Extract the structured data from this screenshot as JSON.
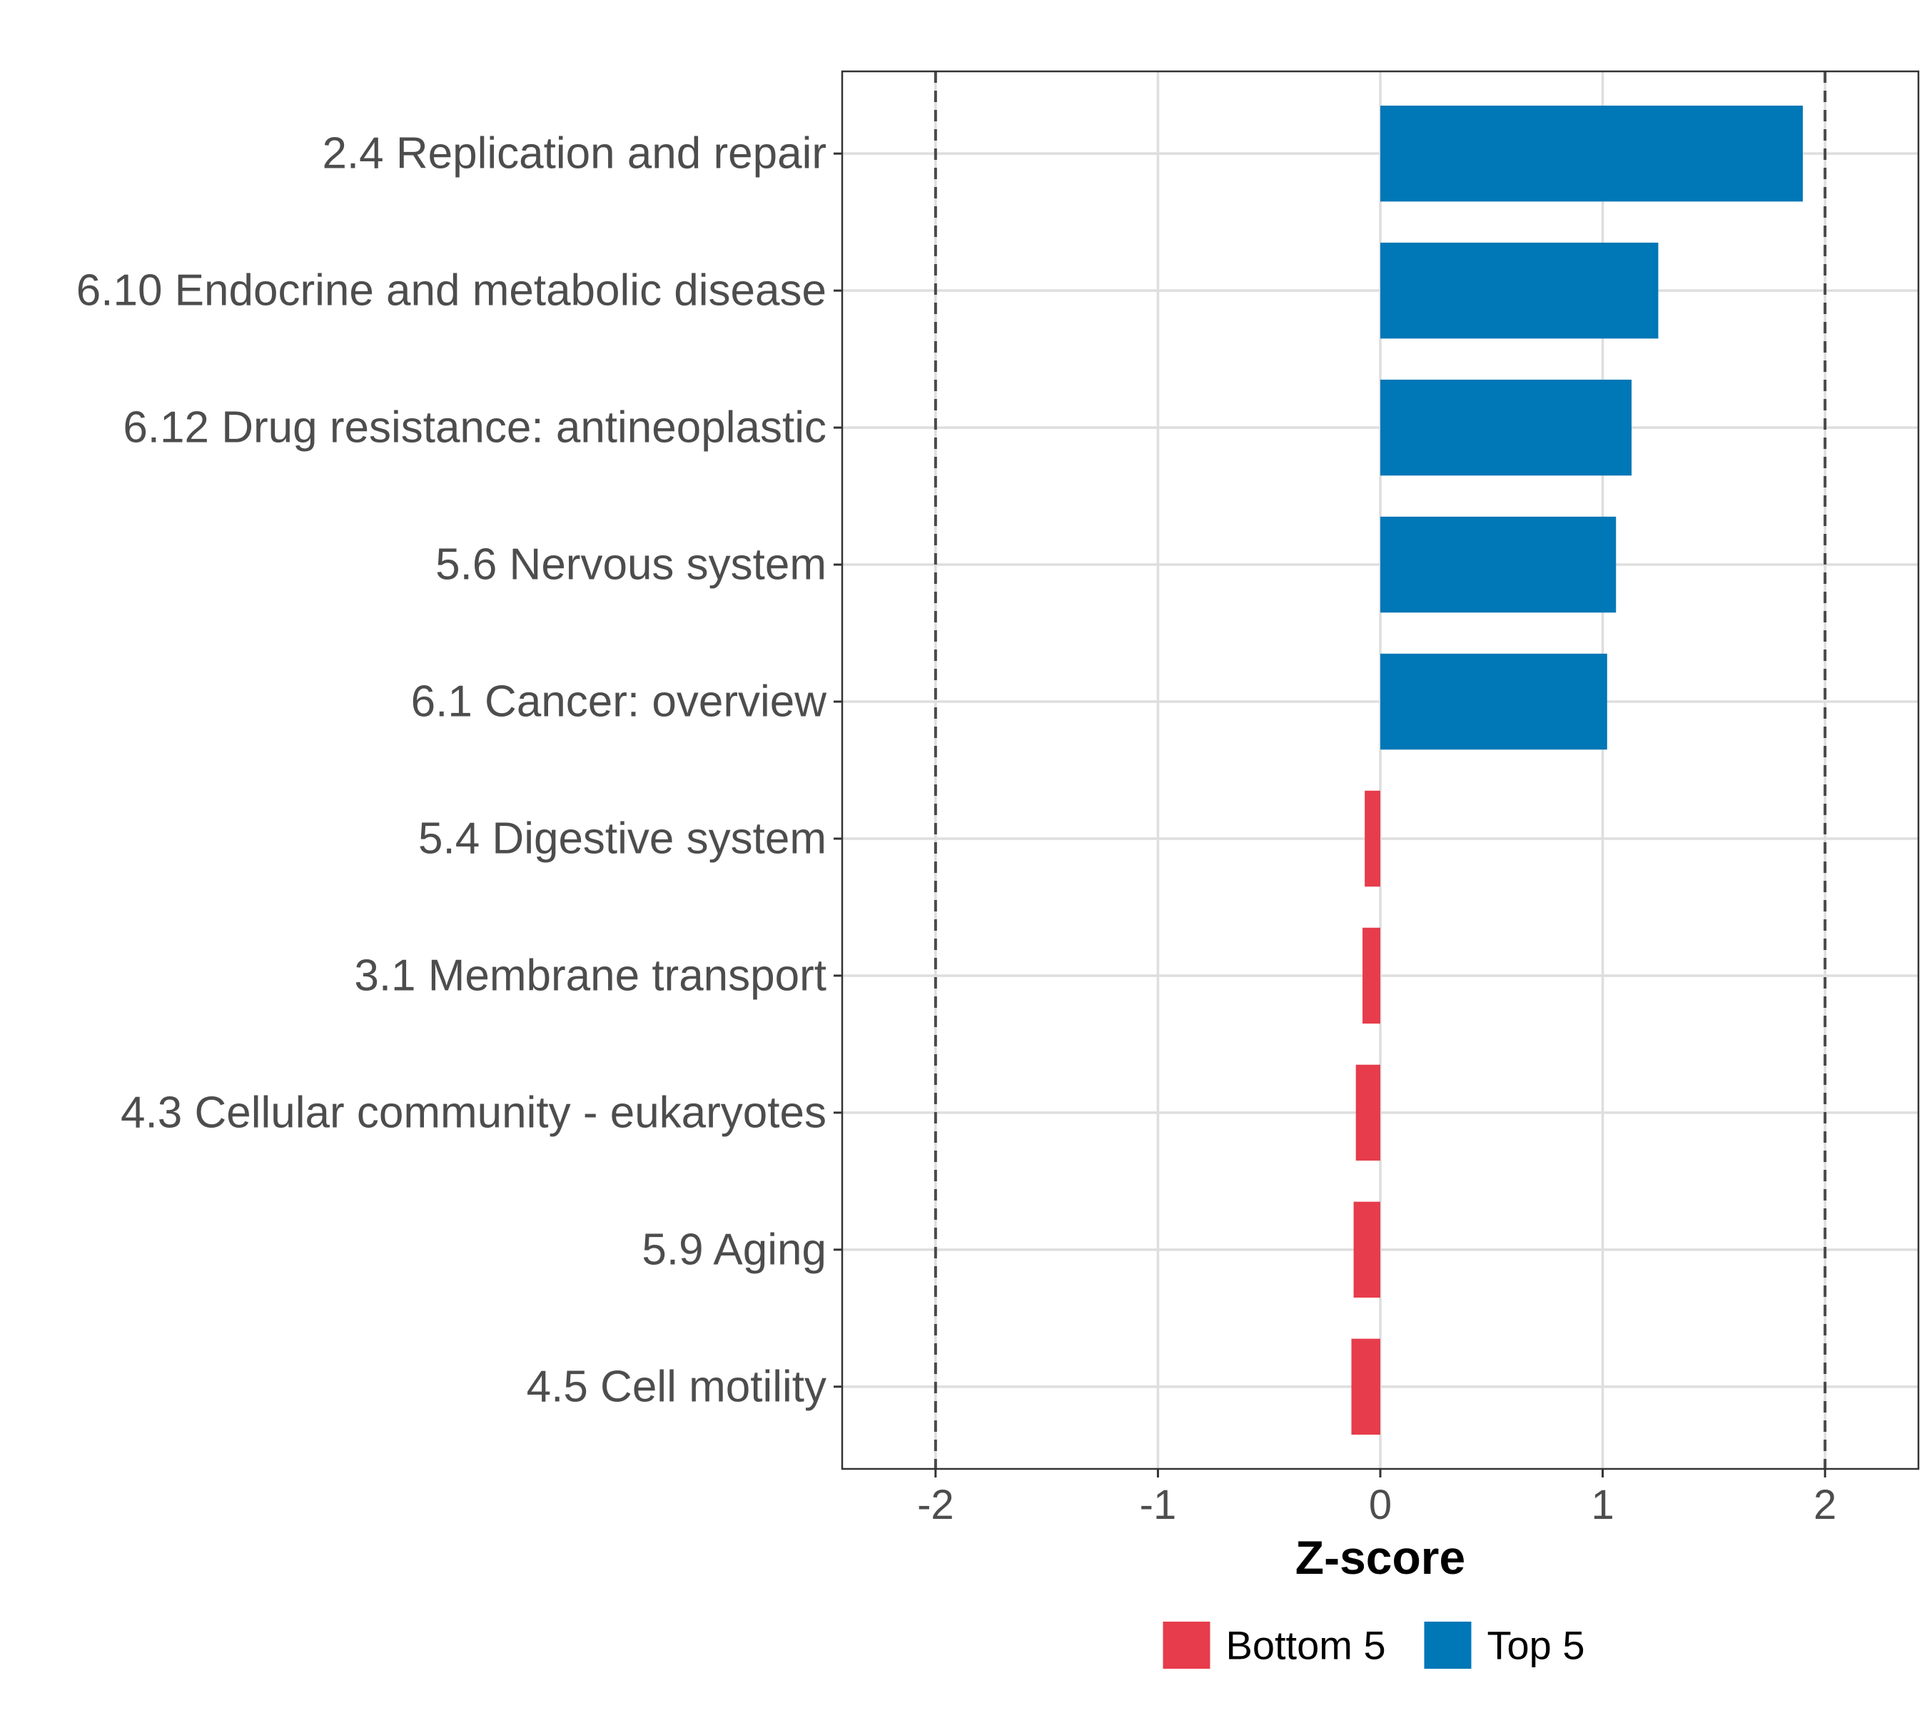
{
  "chart_data": {
    "type": "bar",
    "orientation": "horizontal",
    "title": "",
    "xlabel": "Z-score",
    "ylabel": "",
    "xlim": [
      -2.42,
      2.42
    ],
    "xticks": [
      -2,
      -1,
      0,
      1,
      2
    ],
    "xtick_labels": [
      "-2",
      "-1",
      "0",
      "1",
      "2"
    ],
    "reference_lines": [
      -2,
      2
    ],
    "grid": true,
    "legend_position": "bottom",
    "categories": [
      "2.4 Replication and repair",
      "6.10 Endocrine and metabolic disease",
      "6.12 Drug resistance: antineoplastic",
      "5.6 Nervous system",
      "6.1 Cancer: overview",
      "5.4 Digestive system",
      "3.1 Membrane transport",
      "4.3 Cellular community - eukaryotes",
      "5.9 Aging",
      "4.5 Cell motility"
    ],
    "values": [
      1.9,
      1.25,
      1.13,
      1.06,
      1.02,
      -0.07,
      -0.08,
      -0.11,
      -0.12,
      -0.13
    ],
    "groups": [
      "Top 5",
      "Top 5",
      "Top 5",
      "Top 5",
      "Top 5",
      "Bottom 5",
      "Bottom 5",
      "Bottom 5",
      "Bottom 5",
      "Bottom 5"
    ],
    "legend": [
      {
        "name": "Bottom 5",
        "color": "#e63c4b"
      },
      {
        "name": "Top 5",
        "color": "#0077b6"
      }
    ]
  }
}
